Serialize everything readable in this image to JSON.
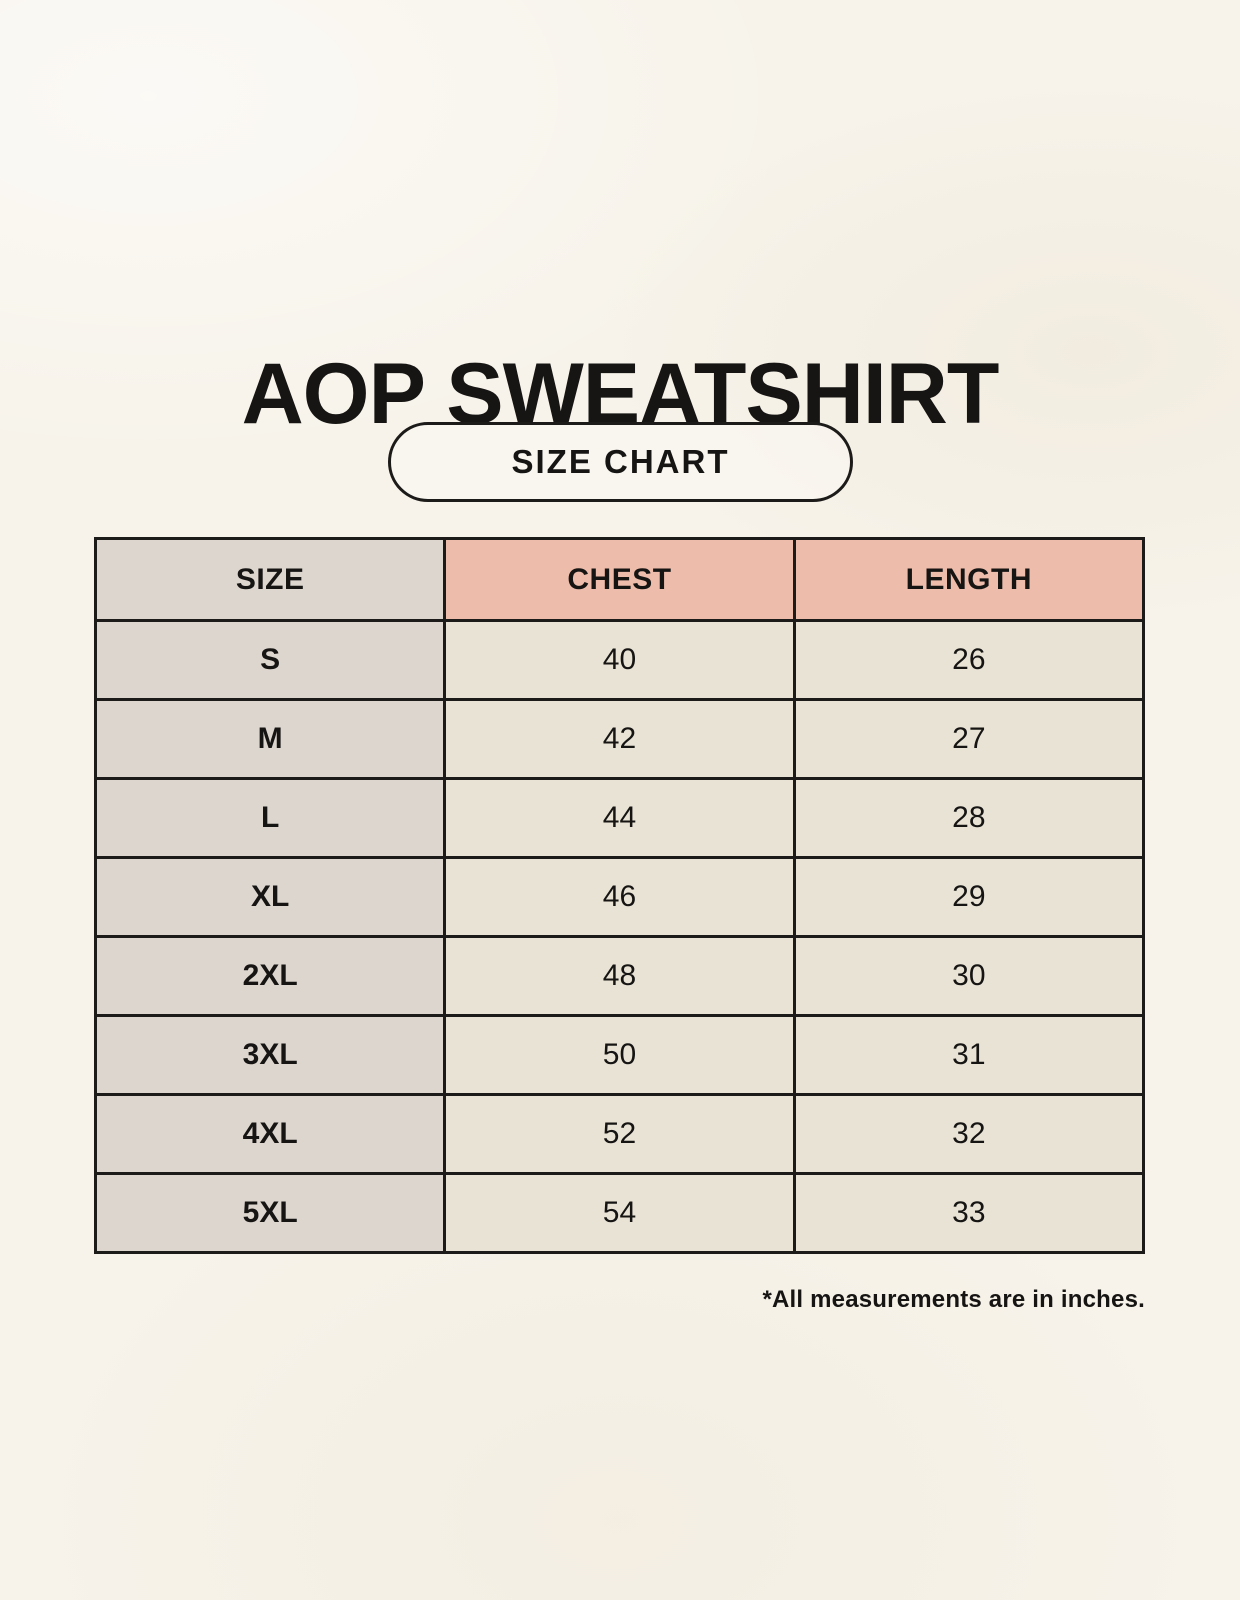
{
  "title": "AOP SWEATSHIRT",
  "badge_label": "SIZE CHART",
  "footnote": "*All measurements are in inches.",
  "colors": {
    "background": "#f7f3ea",
    "size_column": "#ddd6cf",
    "header_accent": "#eebcab",
    "cell": "#e9e3d6",
    "border": "#1c1b19",
    "text": "#161513"
  },
  "chart_data": {
    "type": "table",
    "title": "AOP SWEATSHIRT",
    "subtitle": "SIZE CHART",
    "columns": [
      "SIZE",
      "CHEST",
      "LENGTH"
    ],
    "rows": [
      [
        "S",
        "40",
        "26"
      ],
      [
        "M",
        "42",
        "27"
      ],
      [
        "L",
        "44",
        "28"
      ],
      [
        "XL",
        "46",
        "29"
      ],
      [
        "2XL",
        "48",
        "30"
      ],
      [
        "3XL",
        "50",
        "31"
      ],
      [
        "4XL",
        "52",
        "32"
      ],
      [
        "5XL",
        "54",
        "33"
      ]
    ],
    "units": "inches",
    "note": "*All measurements are in inches."
  }
}
